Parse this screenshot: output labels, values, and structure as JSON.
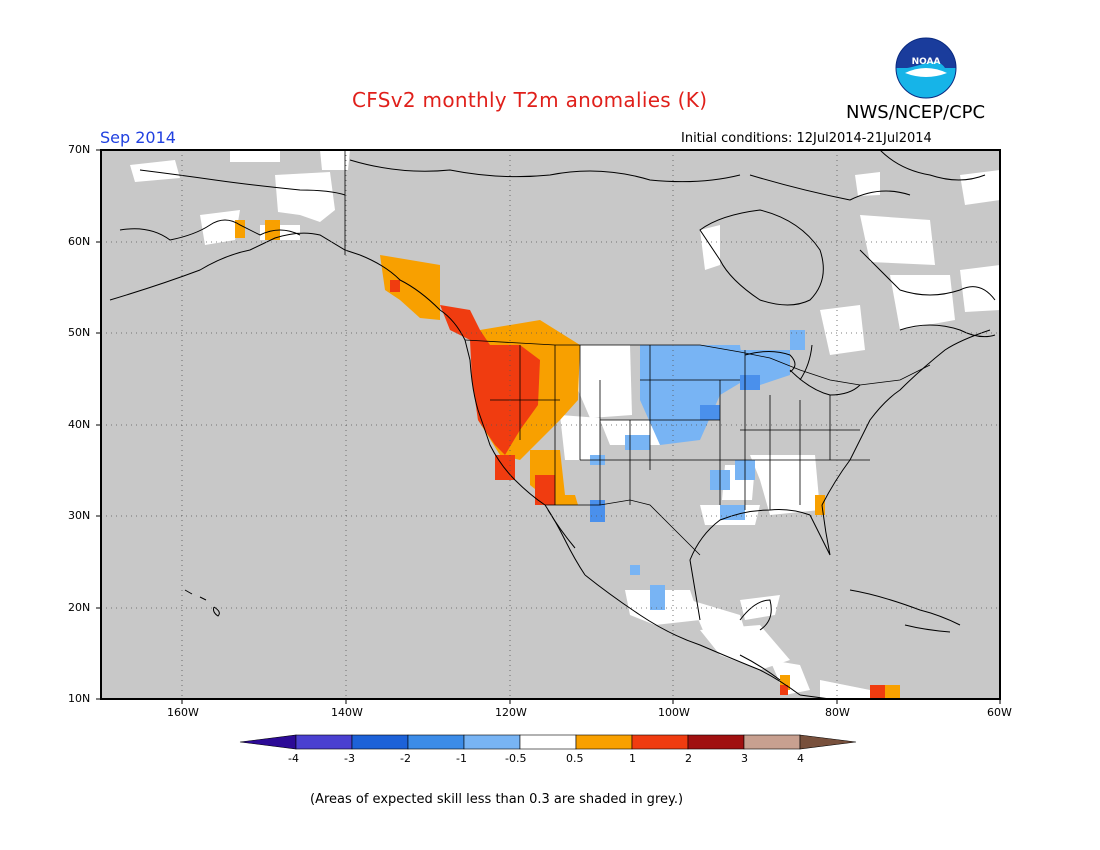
{
  "header": {
    "title": "CFSv2 monthly T2m anomalies (K)",
    "agency": "NWS/NCEP/CPC",
    "month": "Sep 2014",
    "initial_conditions": "Initial conditions: 12Jul2014-21Jul2014",
    "logo_text": "NOAA"
  },
  "map": {
    "lat_labels": [
      "70N",
      "60N",
      "50N",
      "40N",
      "30N",
      "20N",
      "10N"
    ],
    "lon_labels": [
      "160W",
      "140W",
      "120W",
      "100W",
      "80W",
      "60W"
    ],
    "lat_range": [
      10,
      70
    ],
    "lon_range": [
      -170,
      -60
    ],
    "colors": {
      "no_skill": "#c8c8c8",
      "neutral": "#ffffff",
      "warm_05": "#f8a000",
      "warm_1": "#f03c10",
      "cool_05": "#78b4f4",
      "cool_1": "#4a90ec",
      "coast": "#000000"
    }
  },
  "colorbar": {
    "labels": [
      "-4",
      "-3",
      "-2",
      "-1",
      "-0.5",
      "0.5",
      "1",
      "2",
      "3",
      "4"
    ],
    "colors": [
      "#2c0a96",
      "#4a40d0",
      "#1d62d8",
      "#3c8ce8",
      "#78b4f4",
      "#ffffff",
      "#f8a000",
      "#f03c10",
      "#a01010",
      "#c8a090",
      "#78503c"
    ]
  },
  "footnote": "(Areas of expected skill less than 0.3 are shaded in grey.)"
}
